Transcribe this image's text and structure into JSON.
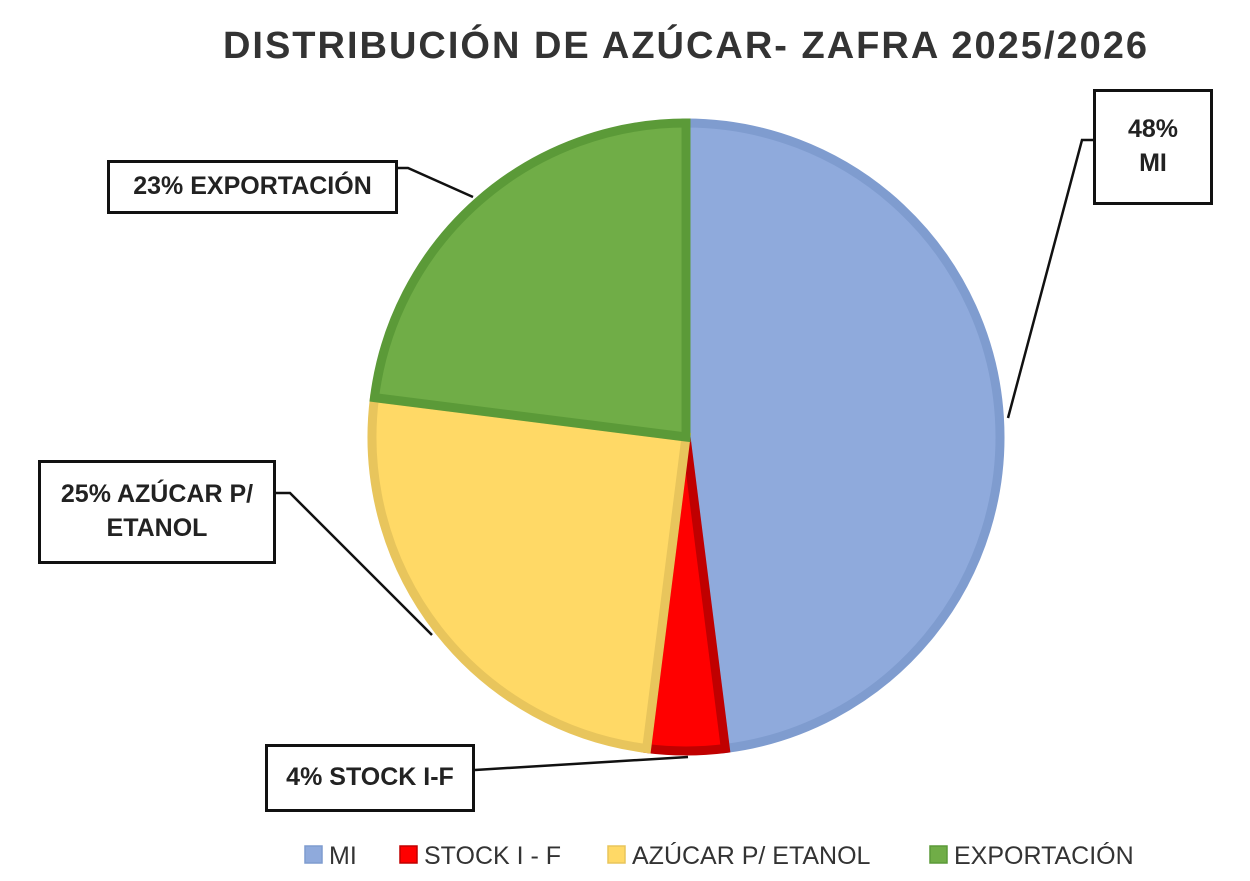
{
  "chart_data": {
    "type": "pie",
    "title": "DISTRIBUCIÓN DE AZÚCAR- ZAFRA 2025/2026",
    "categories": [
      "MI",
      "STOCK I - F",
      "AZÚCAR P/ ETANOL",
      "EXPORTACIÓN"
    ],
    "values": [
      48,
      4,
      25,
      23
    ],
    "value_labels": [
      "48%",
      "4%",
      "25%",
      "23%"
    ],
    "data_label_names": [
      "MI",
      "STOCK I-F",
      "AZÚCAR P/ ETANOL",
      "EXPORTACIÓN"
    ],
    "colors": [
      "#8faadc",
      "#ff0000",
      "#ffd966",
      "#70ad47"
    ],
    "legend": "bottom"
  }
}
